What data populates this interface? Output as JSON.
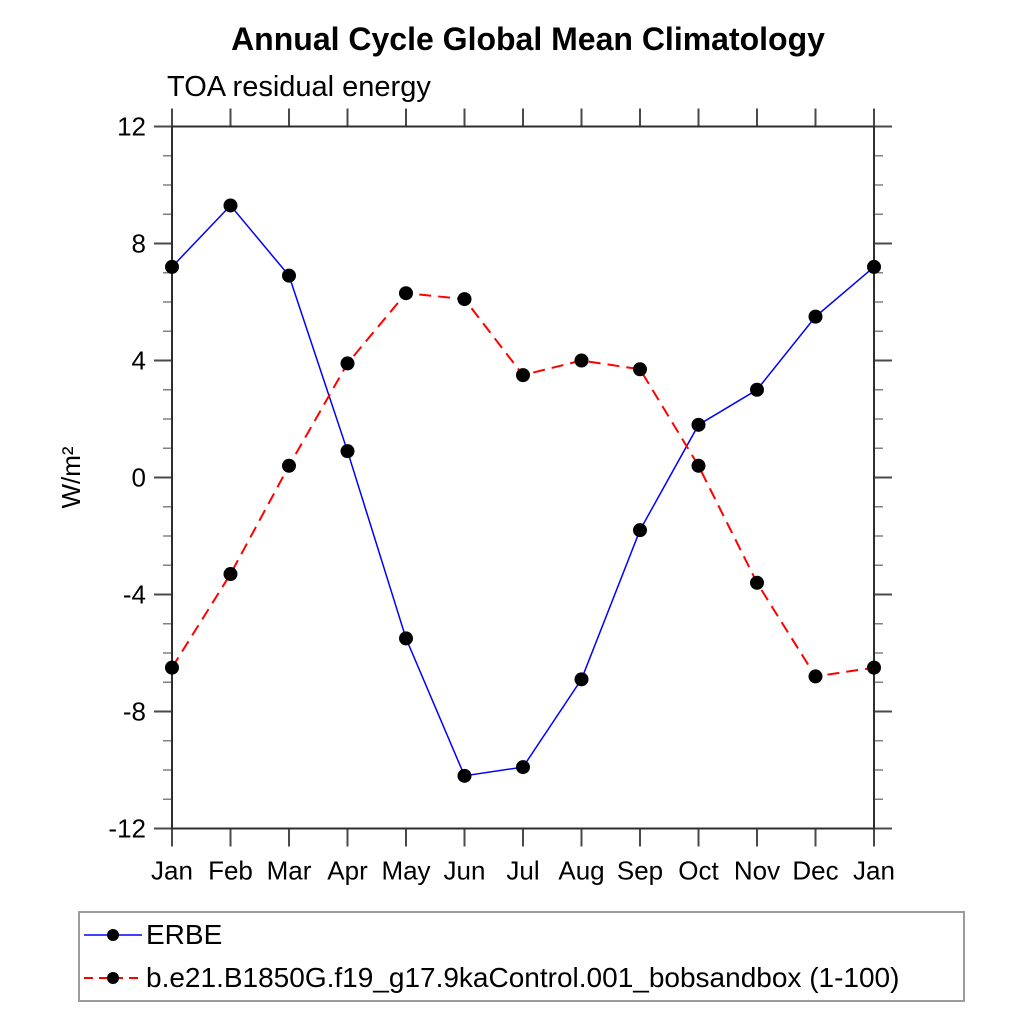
{
  "figure": {
    "title": "Annual Cycle Global Mean Climatology",
    "subtitle": "TOA residual energy"
  },
  "chart_data": {
    "type": "line",
    "title": "Annual Cycle Global Mean Climatology",
    "subtitle": "TOA residual energy",
    "xlabel": "",
    "ylabel": "W/m²",
    "ylim": [
      -12,
      12
    ],
    "ytick_labels": [
      "-12",
      "-8",
      "-4",
      "0",
      "4",
      "8",
      "12"
    ],
    "ytick_major_interval": 4,
    "ytick_minor_interval": 1,
    "x_labels": [
      "Jan",
      "Feb",
      "Mar",
      "Apr",
      "May",
      "Jun",
      "Jul",
      "Aug",
      "Sep",
      "Oct",
      "Nov",
      "Dec",
      "Jan"
    ],
    "grid": false,
    "legend_position": "bottom-left-box",
    "marker": "filled-circle",
    "marker_color": "#000000",
    "series": [
      {
        "name": "ERBE",
        "color": "#0000ff",
        "line_style": "solid",
        "values": [
          7.2,
          9.3,
          6.9,
          0.9,
          -5.5,
          -10.2,
          -9.9,
          -6.9,
          -1.8,
          1.8,
          3.0,
          5.5,
          7.2
        ]
      },
      {
        "name": "b.e21.B1850G.f19_g17.9kaControl.001_bobsandbox (1-100)",
        "color": "#ff0000",
        "line_style": "dashed",
        "values": [
          -6.5,
          -3.3,
          0.4,
          3.9,
          6.3,
          6.1,
          3.5,
          4.0,
          3.7,
          0.4,
          -3.6,
          -6.8,
          -6.5
        ]
      }
    ]
  }
}
